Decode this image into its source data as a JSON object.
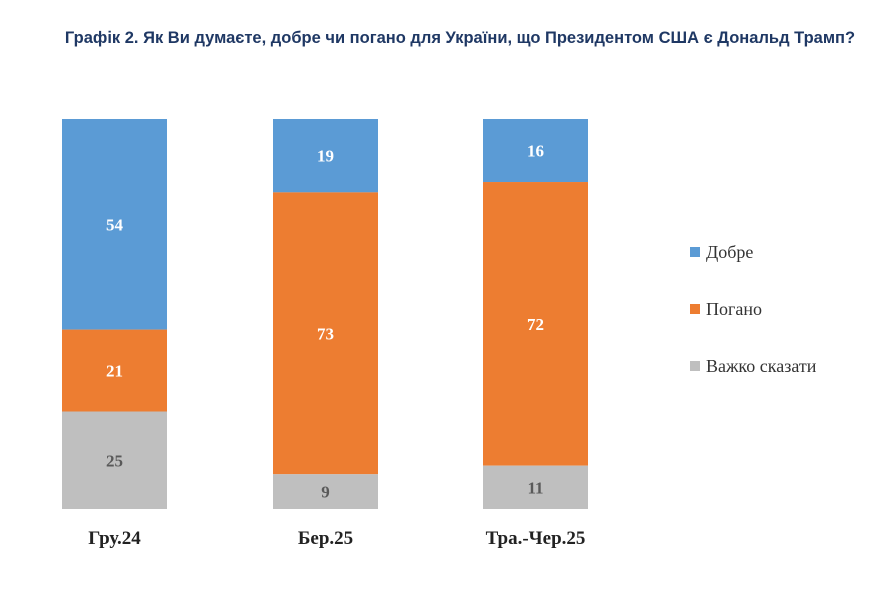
{
  "chart_data": {
    "type": "bar",
    "stacked": true,
    "normalized_percent": true,
    "title": "Графік 2. Як Ви думаєте, добре чи погано для України, що Президентом США є Дональд Трамп?",
    "categories": [
      "Гру.24",
      "Бер.25",
      "Тра.-Чер.25"
    ],
    "series": [
      {
        "name": "Добре",
        "values": [
          54,
          19,
          16
        ],
        "color": "#5b9bd5",
        "label_color": "#ffffff"
      },
      {
        "name": "Погано",
        "values": [
          21,
          73,
          72
        ],
        "color": "#ed7d31",
        "label_color": "#ffffff"
      },
      {
        "name": "Важко сказати",
        "values": [
          25,
          9,
          11
        ],
        "color": "#bfbfbf",
        "label_color": "#595959"
      }
    ],
    "ylim": [
      0,
      100
    ],
    "grid": false,
    "legend_position": "right"
  }
}
